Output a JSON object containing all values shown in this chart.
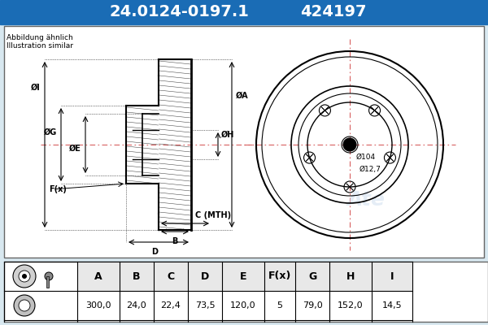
{
  "title_part": "24.0124-0197.1",
  "title_code": "424197",
  "subtitle1": "Abbildung ähnlich",
  "subtitle2": "Illustration similar",
  "header_bg": "#1a6cb5",
  "header_text_color": "#ffffff",
  "bg_color": "#d8e8f0",
  "table_headers": [
    "A",
    "B",
    "C",
    "D",
    "E",
    "F(x)",
    "G",
    "H",
    "I"
  ],
  "table_values": [
    "300,0",
    "24,0",
    "22,4",
    "73,5",
    "120,0",
    "5",
    "79,0",
    "152,0",
    "14,5"
  ],
  "dim_labels_left": [
    "ØI",
    "ØG",
    "ØE",
    "F(x)"
  ],
  "dim_labels_right": [
    "ØH",
    "ØA"
  ],
  "dim_bottom": [
    "B",
    "C (MTH)",
    "D"
  ],
  "label_104": "Ø104",
  "label_127": "Ø12,7"
}
